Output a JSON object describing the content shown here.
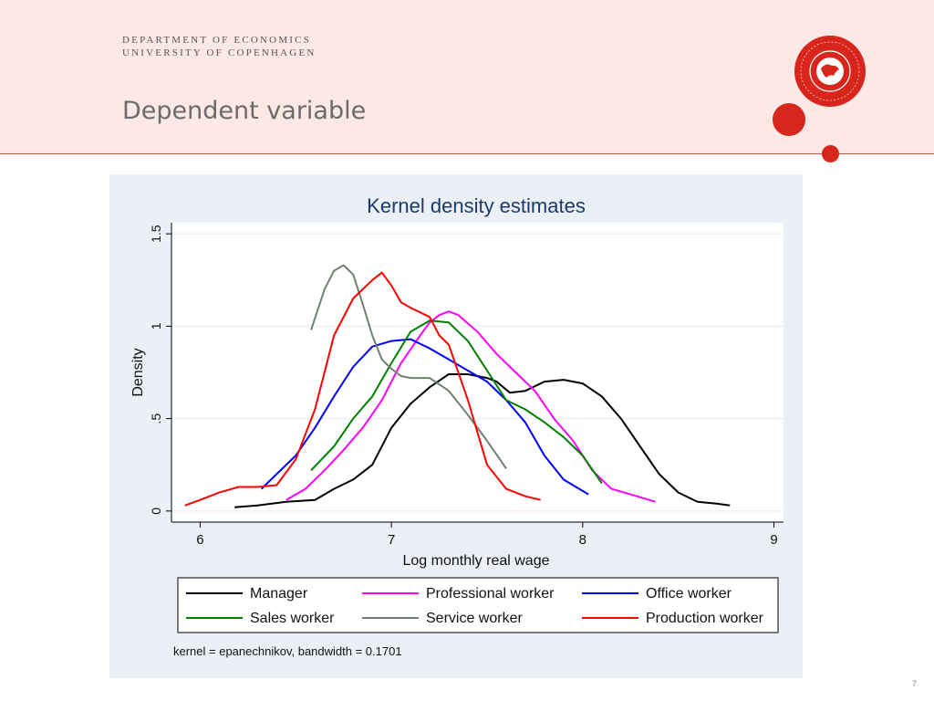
{
  "header": {
    "department_line1": "DEPARTMENT OF ECONOMICS",
    "department_line2": "UNIVERSITY OF COPENHAGEN",
    "slide_title": "Dependent variable",
    "seal_text": "SOCIALIS · SIGILLUM · FACULTATIS · UNIVERSITATIS · HAFNIENSIS",
    "accent_color": "#d9261c"
  },
  "page_number": "7",
  "chart_data": {
    "type": "line",
    "title": "Kernel density estimates",
    "xlabel": "Log monthly real wage",
    "ylabel": "Density",
    "xlim": [
      5.85,
      9.05
    ],
    "ylim": [
      -0.06,
      1.56
    ],
    "x_ticks": [
      6,
      7,
      8,
      9
    ],
    "y_ticks": [
      0,
      0.5,
      1,
      1.5
    ],
    "y_tick_labels": [
      "0",
      ".5",
      "1",
      "1.5"
    ],
    "grid": true,
    "note": "kernel = epanechnikov, bandwidth = 0.1701",
    "legend_position": "bottom",
    "series": [
      {
        "name": "Manager",
        "color": "#000000",
        "x": [
          6.18,
          6.3,
          6.45,
          6.6,
          6.7,
          6.8,
          6.9,
          7.0,
          7.1,
          7.2,
          7.3,
          7.4,
          7.5,
          7.55,
          7.62,
          7.7,
          7.8,
          7.9,
          8.0,
          8.1,
          8.2,
          8.3,
          8.4,
          8.5,
          8.6,
          8.7,
          8.77
        ],
        "y": [
          0.02,
          0.03,
          0.05,
          0.06,
          0.12,
          0.17,
          0.25,
          0.45,
          0.58,
          0.67,
          0.74,
          0.74,
          0.72,
          0.7,
          0.64,
          0.65,
          0.7,
          0.71,
          0.69,
          0.62,
          0.5,
          0.35,
          0.2,
          0.1,
          0.05,
          0.04,
          0.03
        ]
      },
      {
        "name": "Professional worker",
        "color": "#ff00ff",
        "x": [
          6.45,
          6.55,
          6.65,
          6.75,
          6.85,
          6.95,
          7.05,
          7.15,
          7.2,
          7.25,
          7.3,
          7.35,
          7.45,
          7.55,
          7.65,
          7.75,
          7.85,
          7.95,
          8.05,
          8.15,
          8.25,
          8.38
        ],
        "y": [
          0.06,
          0.12,
          0.22,
          0.33,
          0.45,
          0.6,
          0.8,
          0.95,
          1.02,
          1.06,
          1.08,
          1.06,
          0.97,
          0.85,
          0.75,
          0.65,
          0.5,
          0.38,
          0.22,
          0.12,
          0.09,
          0.05
        ]
      },
      {
        "name": "Office worker",
        "color": "#0000ff",
        "x": [
          6.32,
          6.4,
          6.5,
          6.6,
          6.7,
          6.8,
          6.9,
          7.0,
          7.1,
          7.2,
          7.3,
          7.4,
          7.5,
          7.6,
          7.7,
          7.8,
          7.9,
          8.03
        ],
        "y": [
          0.12,
          0.2,
          0.3,
          0.45,
          0.62,
          0.78,
          0.89,
          0.92,
          0.93,
          0.88,
          0.82,
          0.76,
          0.7,
          0.6,
          0.48,
          0.3,
          0.17,
          0.09
        ]
      },
      {
        "name": "Sales worker",
        "color": "#008000",
        "x": [
          6.58,
          6.7,
          6.8,
          6.9,
          7.0,
          7.1,
          7.2,
          7.3,
          7.4,
          7.5,
          7.6,
          7.7,
          7.8,
          7.9,
          8.0,
          8.1
        ],
        "y": [
          0.22,
          0.35,
          0.5,
          0.62,
          0.8,
          0.97,
          1.03,
          1.02,
          0.92,
          0.76,
          0.6,
          0.55,
          0.48,
          0.4,
          0.3,
          0.15
        ]
      },
      {
        "name": "Service worker",
        "color": "#708070",
        "x": [
          6.58,
          6.65,
          6.7,
          6.75,
          6.8,
          6.85,
          6.9,
          6.95,
          7.0,
          7.05,
          7.1,
          7.2,
          7.3,
          7.4,
          7.5,
          7.6
        ],
        "y": [
          0.98,
          1.2,
          1.3,
          1.33,
          1.28,
          1.12,
          0.95,
          0.82,
          0.77,
          0.73,
          0.72,
          0.72,
          0.65,
          0.52,
          0.38,
          0.23
        ]
      },
      {
        "name": "Production worker",
        "color": "#ff0000",
        "x": [
          5.92,
          6.0,
          6.1,
          6.2,
          6.3,
          6.4,
          6.5,
          6.6,
          6.7,
          6.8,
          6.9,
          6.95,
          7.0,
          7.05,
          7.1,
          7.2,
          7.25,
          7.3,
          7.4,
          7.5,
          7.6,
          7.7,
          7.78
        ],
        "y": [
          0.03,
          0.06,
          0.1,
          0.13,
          0.13,
          0.14,
          0.28,
          0.55,
          0.95,
          1.15,
          1.25,
          1.29,
          1.22,
          1.13,
          1.1,
          1.05,
          0.95,
          0.9,
          0.6,
          0.25,
          0.12,
          0.08,
          0.06
        ]
      }
    ]
  }
}
